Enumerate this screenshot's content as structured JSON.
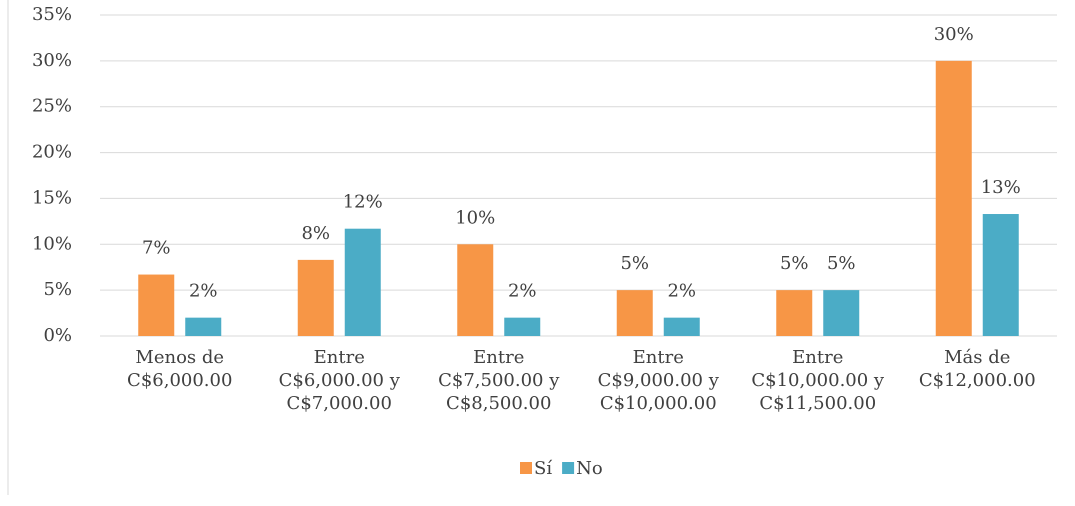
{
  "chart_data": {
    "type": "bar",
    "categories": [
      [
        "Menos de",
        "C$6,000.00"
      ],
      [
        "Entre",
        "C$6,000.00 y",
        "C$7,000.00"
      ],
      [
        "Entre",
        "C$7,500.00 y",
        "C$8,500.00"
      ],
      [
        "Entre",
        "C$9,000.00 y",
        "C$10,000.00"
      ],
      [
        "Entre",
        "C$10,000.00 y",
        "C$11,500.00"
      ],
      [
        "Más de",
        "C$12,000.00"
      ]
    ],
    "series": [
      {
        "name": "Sí",
        "color": "#f79646",
        "values": [
          6.7,
          8.3,
          10,
          5,
          5,
          30
        ],
        "value_labels": [
          "7%",
          "8%",
          "10%",
          "5%",
          "5%",
          "30%"
        ]
      },
      {
        "name": "No",
        "color": "#4bacc6",
        "values": [
          2,
          11.7,
          2,
          2,
          5,
          13.3
        ],
        "value_labels": [
          "2%",
          "12%",
          "2%",
          "2%",
          "5%",
          "13%"
        ]
      }
    ],
    "ylim": [
      0,
      35
    ],
    "yticks": [
      {
        "value": 0,
        "label": "0%"
      },
      {
        "value": 5,
        "label": "5%"
      },
      {
        "value": 10,
        "label": "10%"
      },
      {
        "value": 15,
        "label": "15%"
      },
      {
        "value": 20,
        "label": "20%"
      },
      {
        "value": 25,
        "label": "25%"
      },
      {
        "value": 30,
        "label": "30%"
      },
      {
        "value": 35,
        "label": "35%"
      }
    ],
    "grid": true,
    "legend": "bottom"
  }
}
